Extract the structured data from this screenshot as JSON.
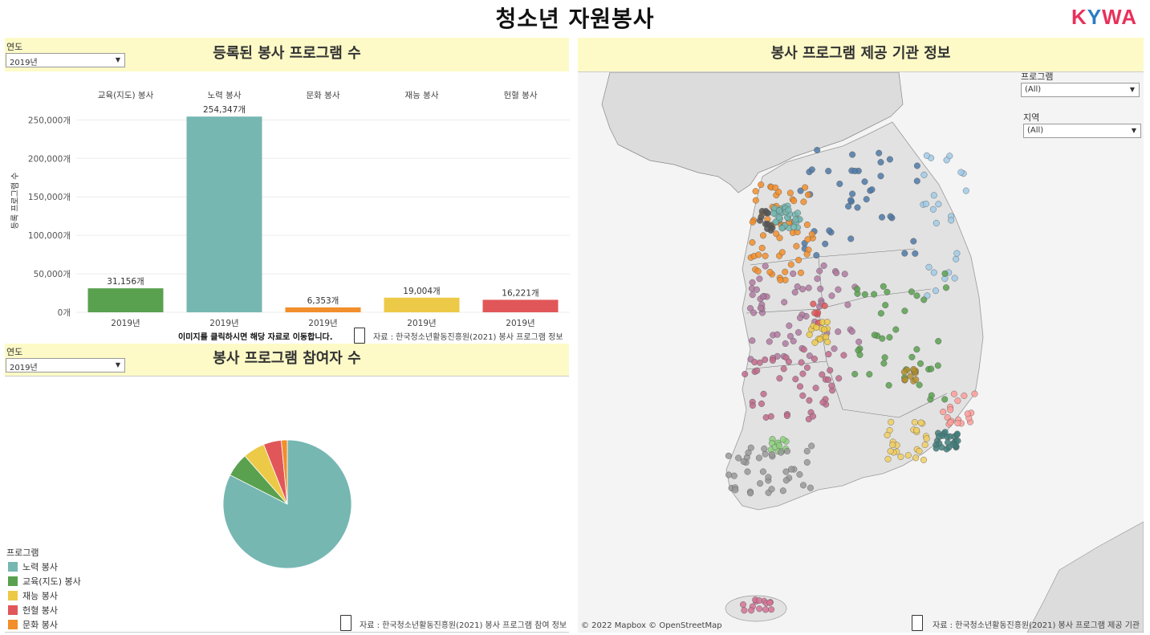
{
  "page": {
    "title": "청소년 자원봉사",
    "logo": {
      "letters": [
        "K",
        "Y",
        "W",
        "A"
      ],
      "colors": [
        "#e8315b",
        "#2b7cc1",
        "#e8315b",
        "#e8315b"
      ]
    }
  },
  "bar_panel": {
    "header": "등록된 봉사 프로그램 수",
    "filter": {
      "label": "연도",
      "value": "2019년"
    },
    "click_note": "이미지를 클릭하시면 해당 자료로 이동합니다.",
    "source": "자료 : 한국청소년활동진흥원(2021) 봉사 프로그램 정보"
  },
  "pie_panel": {
    "header": "봉사 프로그램 참여자 수",
    "filter": {
      "label": "연도",
      "value": "2019년"
    },
    "legend_title": "프로그램",
    "legend": [
      {
        "label": "노력 봉사",
        "color": "#76b7b2"
      },
      {
        "label": "교육(지도) 봉사",
        "color": "#59a14f"
      },
      {
        "label": "재능 봉사",
        "color": "#edc948"
      },
      {
        "label": "헌혈 봉사",
        "color": "#e15759"
      },
      {
        "label": "문화 봉사",
        "color": "#f28e2b"
      }
    ],
    "source": "자료 : 한국청소년활동진흥원(2021) 봉사 프로그램 참여 정보"
  },
  "map_panel": {
    "header": "봉사 프로그램 제공 기관 정보",
    "filter_program": {
      "label": "프로그램",
      "value": "(All)"
    },
    "filter_region": {
      "label": "지역",
      "value": "(All)"
    },
    "attribution": "© 2022 Mapbox  © OpenStreetMap",
    "source": "자료 : 한국청소년활동진흥원(2021) 봉사 프로그램 제공 기관"
  },
  "chart_data": [
    {
      "type": "bar",
      "categories": [
        "교육(지도) 봉사",
        "노력 봉사",
        "문화 봉사",
        "재능 봉사",
        "헌혈 봉사"
      ],
      "x_sublabel": "2019년",
      "values": [
        31156,
        254347,
        6353,
        19004,
        16221
      ],
      "value_labels": [
        "31,156개",
        "254,347개",
        "6,353개",
        "19,004개",
        "16,221개"
      ],
      "colors": [
        "#59a14f",
        "#76b7b2",
        "#f28e2b",
        "#edc948",
        "#e15759"
      ],
      "ylabel": "등록 프로그램 수",
      "yticks": [
        0,
        50000,
        100000,
        150000,
        200000,
        250000
      ],
      "ytick_labels": [
        "0개",
        "50,000개",
        "100,000개",
        "150,000개",
        "200,000개",
        "250,000개"
      ],
      "ylim": [
        0,
        265000
      ],
      "grid": true
    },
    {
      "type": "pie",
      "labels": [
        "노력 봉사",
        "교육(지도) 봉사",
        "재능 봉사",
        "헌혈 봉사",
        "문화 봉사"
      ],
      "values": [
        82.5,
        6.0,
        5.5,
        4.5,
        1.5
      ],
      "colors": [
        "#76b7b2",
        "#59a14f",
        "#edc948",
        "#e15759",
        "#f28e2b"
      ]
    }
  ]
}
